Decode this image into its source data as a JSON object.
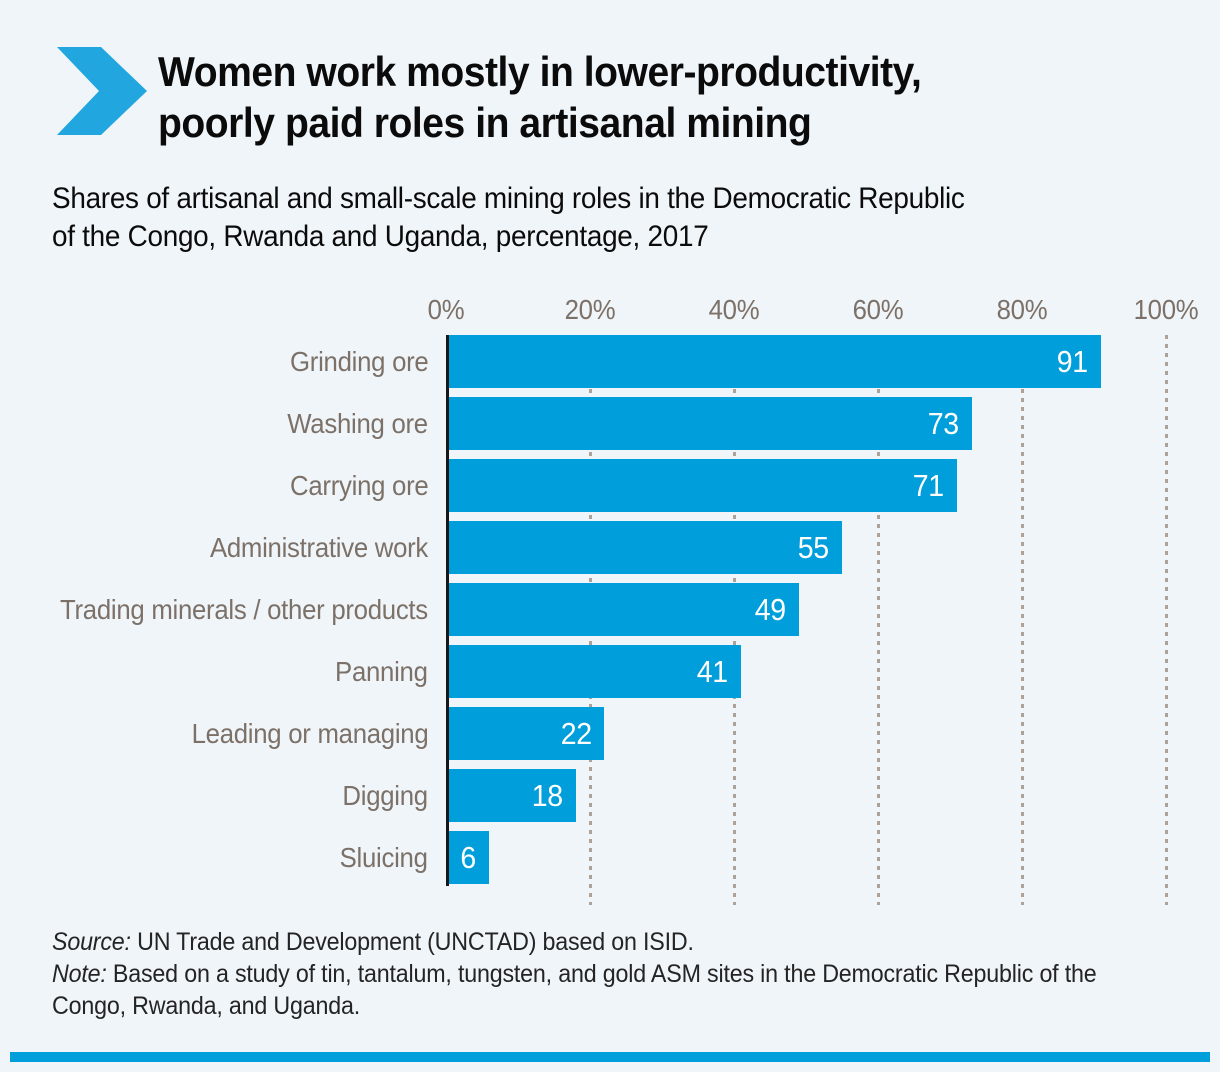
{
  "header": {
    "title": "Women work mostly in lower-productivity,\npoorly paid roles in artisanal mining",
    "subtitle": "Shares of artisanal and small-scale mining roles in the Democratic Republic\nof the Congo, Rwanda and Uganda, percentage, 2017"
  },
  "icons": {
    "title_marker": "chevron-right-icon"
  },
  "chart_data": {
    "type": "bar",
    "orientation": "horizontal",
    "categories": [
      "Grinding ore",
      "Washing ore",
      "Carrying ore",
      "Administrative work",
      "Trading minerals / other products",
      "Panning",
      "Leading or managing",
      "Digging",
      "Sluicing"
    ],
    "values": [
      91,
      73,
      71,
      55,
      49,
      41,
      22,
      18,
      6
    ],
    "x_ticks": [
      "0%",
      "20%",
      "40%",
      "60%",
      "80%",
      "100%"
    ],
    "xlim": [
      0,
      100
    ],
    "grid": "vertical-dotted",
    "value_labels": "inside-bar-end-white",
    "axis_position": "top"
  },
  "footer": {
    "source_label": "Source:",
    "source_text": " UN Trade and Development (UNCTAD) based on ISID.",
    "note_label": "Note:",
    "note_text": " Based on a study of tin, tantalum, tungsten, and gold ASM sites in the Democratic Republic of the\nCongo, Rwanda, and Uganda."
  },
  "colors": {
    "bar-blue": "#009EDB",
    "chevron-blue": "#21A6E0",
    "page-bg": "#F0F5F9",
    "label-gray": "#7C7168",
    "grid-dot": "#ACA29A",
    "axis-black": "#161616",
    "value-white": "#FFFFFF"
  }
}
